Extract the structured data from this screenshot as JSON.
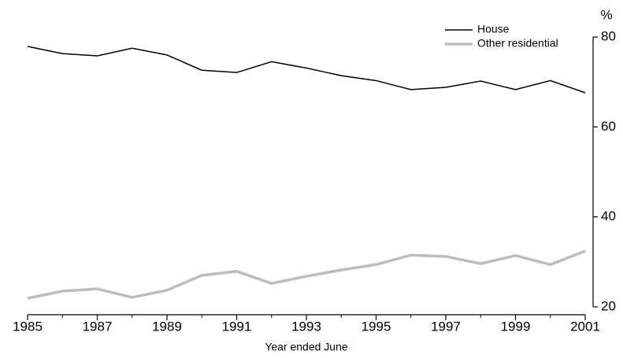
{
  "chart_data": {
    "type": "line",
    "x": [
      1985,
      1986,
      1987,
      1988,
      1989,
      1990,
      1991,
      1992,
      1993,
      1994,
      1995,
      1996,
      1997,
      1998,
      1999,
      2000,
      2001
    ],
    "series": [
      {
        "name": "House",
        "color": "#000000",
        "values": [
          77.9,
          76.3,
          75.8,
          77.5,
          76.0,
          72.6,
          72.1,
          74.5,
          73.1,
          71.4,
          70.3,
          68.3,
          68.8,
          70.2,
          68.3,
          70.3,
          67.6
        ]
      },
      {
        "name": "Other residential",
        "color": "#bdbdbd",
        "values": [
          21.9,
          23.5,
          24.0,
          22.1,
          23.7,
          27.0,
          27.9,
          25.2,
          26.8,
          28.2,
          29.4,
          31.5,
          31.2,
          29.6,
          31.4,
          29.4,
          32.4
        ]
      }
    ],
    "xlabel": "Year ended June",
    "ylabel": "%",
    "xlim": [
      1985,
      2001
    ],
    "xticks": [
      1985,
      1987,
      1989,
      1991,
      1993,
      1995,
      1997,
      1999,
      2001
    ],
    "ylim": [
      20,
      80
    ],
    "yticks": [
      20,
      40,
      60,
      80
    ],
    "y_axis_side": "right",
    "legend": "top-right",
    "grid": false
  }
}
